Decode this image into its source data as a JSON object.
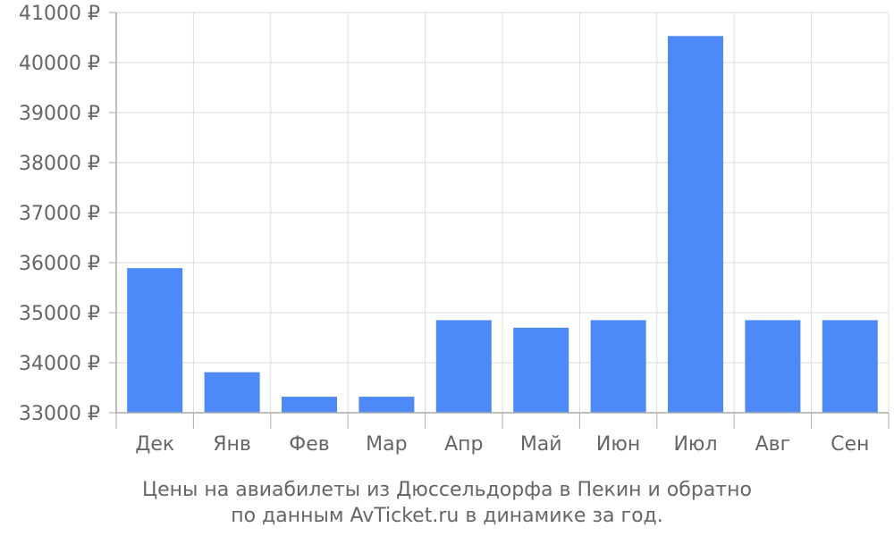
{
  "chart_data": {
    "type": "bar",
    "categories": [
      "Дек",
      "Янв",
      "Фев",
      "Мар",
      "Апр",
      "Май",
      "Июн",
      "Июл",
      "Авг",
      "Сен"
    ],
    "values": [
      35890,
      33810,
      33320,
      33320,
      34850,
      34700,
      34850,
      40530,
      34850,
      34850
    ],
    "ylim": [
      33000,
      41000
    ],
    "yticks": [
      33000,
      34000,
      35000,
      36000,
      37000,
      38000,
      39000,
      40000,
      41000
    ],
    "ytick_labels": [
      "33000 ₽",
      "34000 ₽",
      "35000 ₽",
      "36000 ₽",
      "37000 ₽",
      "38000 ₽",
      "39000 ₽",
      "40000 ₽",
      "41000 ₽"
    ],
    "grid": true,
    "bar_color": "#4d8af8",
    "grid_color": "#dddddd",
    "axis_color": "#aaaaaa",
    "text_color": "#666666"
  },
  "caption": {
    "line1": "Цены на авиабилеты из Дюссельдорфа в Пекин и обратно",
    "line2": "по данным AvTicket.ru в динамике за год."
  }
}
